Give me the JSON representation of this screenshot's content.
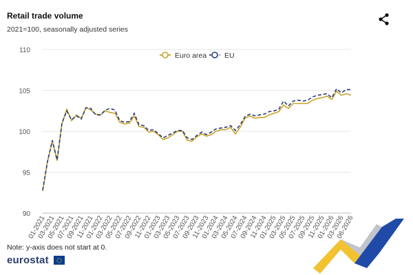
{
  "header": {
    "title": "Retail trade volume",
    "subtitle": "2021=100, seasonally adjusted series"
  },
  "note": "Note: y-axis does not start at 0.",
  "brand": {
    "logo_text": "eurostat"
  },
  "colors": {
    "euro_area": "#c9a227",
    "eu": "#2a3d7a",
    "grid": "#e6e6e6"
  },
  "icons": {
    "share": "share-icon"
  },
  "chart_data": {
    "type": "line",
    "ylim": [
      90,
      110
    ],
    "yticks": [
      90,
      95,
      100,
      105,
      110
    ],
    "xticks": [
      "01-2021",
      "03-2021",
      "05-2021",
      "07-2021",
      "09-2021",
      "11-2021",
      "01-2022",
      "03-2022",
      "05-2022",
      "07-2022",
      "09-2022",
      "11-2022",
      "01-2023",
      "03-2023",
      "05-2023",
      "07-2023",
      "09-2023",
      "11-2023",
      "01-2024",
      "03-2024",
      "05-2024",
      "07-2024",
      "09-2024",
      "11-2024",
      "01-2025",
      "03-2025",
      "05-2025",
      "07-2025",
      "09-2025",
      "11-2025",
      "01-2026",
      "03-2026",
      "06-2026"
    ],
    "legend_position": "top-center",
    "grid": true,
    "series": [
      {
        "name": "Euro area",
        "values": [
          92.7,
          96.3,
          98.8,
          96.4,
          100.9,
          102.7,
          101.3,
          102.0,
          101.6,
          102.9,
          102.6,
          102.1,
          102.0,
          102.5,
          102.3,
          102.2,
          101.1,
          100.9,
          101.0,
          101.9,
          100.6,
          100.5,
          99.9,
          100.0,
          99.6,
          99.0,
          99.2,
          99.6,
          100.0,
          100.0,
          98.9,
          98.8,
          99.3,
          99.7,
          99.4,
          99.6,
          100.0,
          100.2,
          100.2,
          100.5,
          99.7,
          100.5,
          101.6,
          101.9,
          101.6,
          101.7,
          101.7,
          102.0,
          102.2,
          102.4,
          103.2,
          102.8,
          103.4,
          103.4,
          103.4,
          103.4,
          103.8,
          104.0,
          104.1,
          104.3,
          103.9,
          104.9,
          104.4,
          104.6,
          104.4
        ]
      },
      {
        "name": "EU",
        "values": [
          92.8,
          96.3,
          98.9,
          96.5,
          101.0,
          102.5,
          101.4,
          101.9,
          101.5,
          102.9,
          102.8,
          102.0,
          102.0,
          102.6,
          102.8,
          102.6,
          101.3,
          101.1,
          101.2,
          102.2,
          100.8,
          100.7,
          100.1,
          100.2,
          99.7,
          99.2,
          99.5,
          99.8,
          100.1,
          100.1,
          99.2,
          99.0,
          99.5,
          99.9,
          99.6,
          99.9,
          100.3,
          100.4,
          100.5,
          100.7,
          100.1,
          100.8,
          101.8,
          102.1,
          101.9,
          102.0,
          102.1,
          102.4,
          102.5,
          102.7,
          103.7,
          103.1,
          103.7,
          103.8,
          103.7,
          103.8,
          104.2,
          104.4,
          104.5,
          104.6,
          104.1,
          105.2,
          104.7,
          105.1,
          105.1
        ]
      }
    ]
  }
}
